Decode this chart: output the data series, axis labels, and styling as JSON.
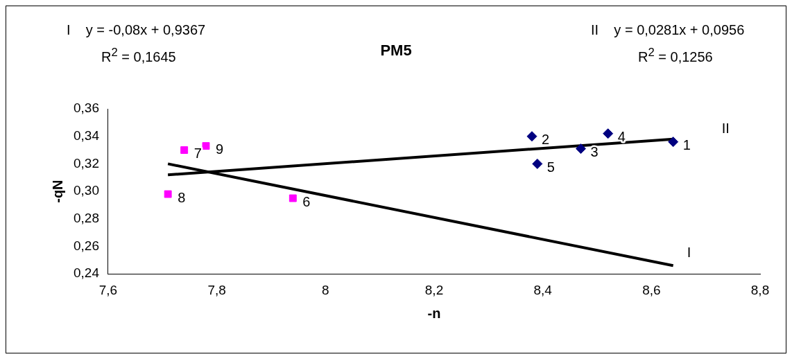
{
  "chart_data": {
    "type": "scatter",
    "title": "PM5",
    "xlabel": "-n",
    "ylabel": "-qN",
    "xlim": [
      7.6,
      8.8
    ],
    "xticks": [
      {
        "value": 7.6,
        "label": "7,6"
      },
      {
        "value": 7.8,
        "label": "7,8"
      },
      8,
      {
        "value": 8.2,
        "label": "8,2"
      },
      {
        "value": 8.4,
        "label": "8,4"
      },
      {
        "value": 8.6,
        "label": "8,6"
      },
      {
        "value": 8.8,
        "label": "8,8"
      }
    ],
    "ylim": [
      0.24,
      0.36
    ],
    "yticks": [
      {
        "value": 0.24,
        "label": "0,24"
      },
      {
        "value": 0.26,
        "label": "0,26"
      },
      {
        "value": 0.28,
        "label": "0,28"
      },
      {
        "value": 0.3,
        "label": "0,30"
      },
      {
        "value": 0.32,
        "label": "0,32"
      },
      {
        "value": 0.34,
        "label": "0,34"
      },
      {
        "value": 0.36,
        "label": "0,36"
      }
    ],
    "grid": false,
    "legend": false,
    "series": [
      {
        "type": "scatter",
        "color": "#000080",
        "marker": "diamond",
        "x": [
          8.64,
          8.38,
          8.47,
          8.52,
          8.39
        ],
        "values": [
          0.336,
          0.34,
          0.331,
          0.342,
          0.32
        ]
      },
      {
        "type": "scatter",
        "color": "#ff00ff",
        "marker": "square",
        "x": [
          7.94,
          7.74,
          7.71,
          7.78
        ],
        "values": [
          0.295,
          0.33,
          0.298,
          0.333
        ]
      },
      {
        "type": "line",
        "name": "I",
        "color": "#000000",
        "marker": "none",
        "x": [
          7.71,
          8.64
        ],
        "values": [
          0.32,
          0.246
        ]
      },
      {
        "type": "line",
        "name": "II",
        "color": "#000000",
        "marker": "none",
        "x": [
          7.71,
          8.64
        ],
        "values": [
          0.312,
          0.338
        ]
      }
    ],
    "annotations": [
      "I    y = -0,08x + 0,9367",
      "R$^{2}$ = 0,1645",
      "II    y = 0,0281x + 0,0956",
      "R$^{2}$ = 0,1256",
      {
        "text": "1",
        "x": 8.64,
        "y": 0.336
      },
      {
        "text": "2",
        "x": 8.38,
        "y": 0.34
      },
      {
        "text": "3",
        "x": 8.47,
        "y": 0.331
      },
      {
        "text": "4",
        "x": 8.52,
        "y": 0.342
      },
      {
        "text": "5",
        "x": 8.39,
        "y": 0.32
      },
      {
        "text": "6",
        "x": 7.94,
        "y": 0.295
      },
      {
        "text": "7",
        "x": 7.74,
        "y": 0.33
      },
      {
        "text": "8",
        "x": 7.71,
        "y": 0.298
      },
      {
        "text": "9",
        "x": 7.78,
        "y": 0.333
      }
    ]
  }
}
